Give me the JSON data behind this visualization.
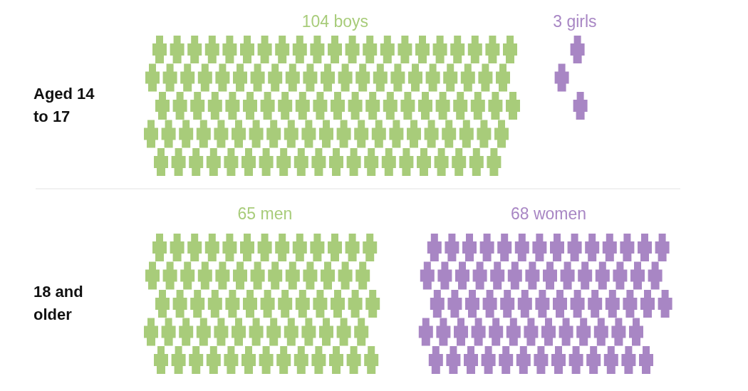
{
  "chart_data": {
    "type": "other",
    "categories": [
      "Aged 14 to 17",
      "18 and older"
    ],
    "series": [
      {
        "color": "#a8cc7a",
        "values": [
          104,
          65
        ],
        "value_labels": [
          "104 boys",
          "65 men"
        ]
      },
      {
        "color": "#a886c4",
        "values": [
          3,
          68
        ],
        "value_labels": [
          "3 girls",
          "68 women"
        ]
      }
    ]
  }
}
